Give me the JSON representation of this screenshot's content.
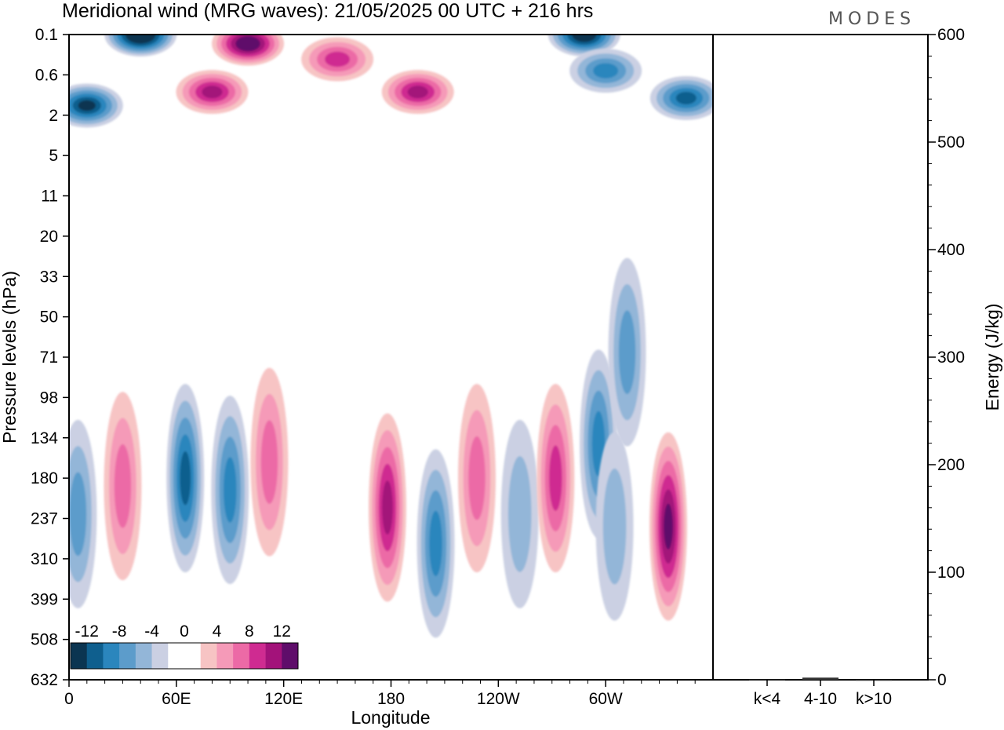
{
  "chart_data": [
    {
      "type": "heatmap",
      "title": "Meridional wind (MRG waves):  21/05/2025  00 UTC  + 216 hrs",
      "xlabel": "Longitude",
      "ylabel": "Pressure levels (hPa)",
      "x_ticks": [
        "0",
        "60E",
        "120E",
        "180",
        "120W",
        "60W"
      ],
      "y_ticks": [
        "0.1",
        "0.6",
        "2",
        "5",
        "11",
        "20",
        "33",
        "50",
        "71",
        "98",
        "134",
        "180",
        "237",
        "310",
        "399",
        "508",
        "632"
      ],
      "colorbar": {
        "labels": [
          "-12",
          "-8",
          "-4",
          "0",
          "4",
          "8",
          "12"
        ],
        "colors": [
          "#0b3551",
          "#0f5f8e",
          "#2b86bd",
          "#5c9ccb",
          "#93b6d8",
          "#cbd0e3",
          "#ffffff",
          "#ffffff",
          "#f7c4c4",
          "#f59ab8",
          "#ec6aa6",
          "#cf2b91",
          "#a3127a",
          "#5f0d6a"
        ]
      },
      "features": [
        {
          "lon": 40,
          "level": 0.1,
          "value": -16
        },
        {
          "lon": 10,
          "level": 1.5,
          "value": -12
        },
        {
          "lon": 100,
          "level": 0.15,
          "value": 14
        },
        {
          "lon": 80,
          "level": 1.0,
          "value": 10
        },
        {
          "lon": 195,
          "level": 1.0,
          "value": 10
        },
        {
          "lon": 150,
          "level": 0.3,
          "value": 9
        },
        {
          "lon": 288,
          "level": 0.1,
          "value": -14
        },
        {
          "lon": 345,
          "level": 1.2,
          "value": -10
        },
        {
          "lon": 300,
          "level": 0.5,
          "value": -8
        },
        {
          "lon": 65,
          "level": 180,
          "value": -10
        },
        {
          "lon": 90,
          "level": 195,
          "value": -8
        },
        {
          "lon": 5,
          "level": 230,
          "value": -6
        },
        {
          "lon": 30,
          "level": 190,
          "value": 6
        },
        {
          "lon": 112,
          "level": 160,
          "value": 6
        },
        {
          "lon": 178,
          "level": 220,
          "value": 10
        },
        {
          "lon": 205,
          "level": 280,
          "value": -8
        },
        {
          "lon": 228,
          "level": 180,
          "value": 6
        },
        {
          "lon": 252,
          "level": 230,
          "value": -5
        },
        {
          "lon": 272,
          "level": 180,
          "value": 9
        },
        {
          "lon": 296,
          "level": 140,
          "value": -8
        },
        {
          "lon": 305,
          "level": 250,
          "value": -4
        },
        {
          "lon": 335,
          "level": 250,
          "value": 13
        },
        {
          "lon": 312,
          "level": 68,
          "value": -6
        }
      ]
    },
    {
      "type": "bar",
      "categories": [
        "k<4",
        "4-10",
        "k>10"
      ],
      "values": [
        0.3,
        2,
        0.2
      ],
      "ylabel": "Energy (J/kg)",
      "ylim": [
        0,
        600
      ],
      "y_ticks": [
        "0",
        "100",
        "200",
        "300",
        "400",
        "500",
        "600"
      ]
    }
  ],
  "brand": "MODES"
}
